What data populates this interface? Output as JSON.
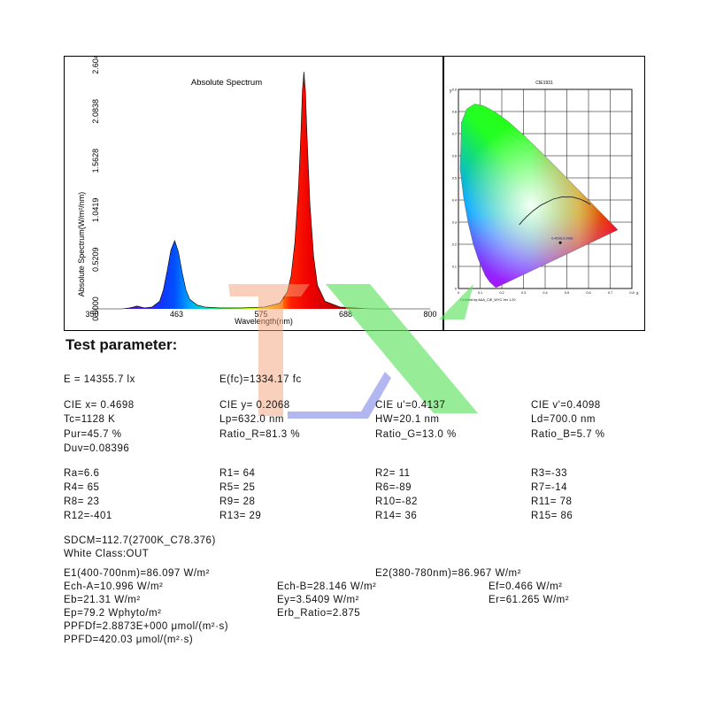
{
  "chart_data": {
    "type": "line",
    "title": "Absolute Spectrum",
    "xlabel": "Wavelength(nm)",
    "ylabel": "Absolute Spectrum(W/m²/nm)",
    "xlim": [
      350,
      800
    ],
    "ylim": [
      0,
      2.6047
    ],
    "x_ticks": [
      "350",
      "463",
      "575",
      "688",
      "800"
    ],
    "y_ticks": [
      "0.0000",
      "0.5209",
      "1.0419",
      "1.5628",
      "2.0838",
      "2.6047"
    ],
    "series": [
      {
        "x": [
          350,
          390,
          400,
          405,
          410,
          415,
          420,
          430,
          440,
          445,
          450,
          455,
          460,
          465,
          470,
          475,
          480,
          490,
          500,
          520,
          550,
          580,
          600,
          610,
          615,
          620,
          625,
          628,
          630,
          632,
          634,
          636,
          640,
          645,
          650,
          660,
          680,
          700,
          720,
          750,
          800
        ],
        "y": [
          0,
          0,
          0.01,
          0.02,
          0.03,
          0.02,
          0.01,
          0.02,
          0.08,
          0.2,
          0.4,
          0.62,
          0.72,
          0.6,
          0.38,
          0.2,
          0.1,
          0.04,
          0.02,
          0.01,
          0.01,
          0.02,
          0.06,
          0.18,
          0.35,
          0.7,
          1.3,
          1.85,
          2.3,
          2.5,
          2.3,
          1.85,
          1.1,
          0.55,
          0.25,
          0.08,
          0.02,
          0.01,
          0,
          0,
          0
        ]
      }
    ],
    "grid": false
  },
  "cie_chart": {
    "title": "CIE1931",
    "footer": "Certified by:AAA_CIE_WYC Ver 1.20",
    "point_label": "0.4698,0.2068",
    "x_ticks": [
      "0",
      "0.1",
      "0.2",
      "0.3",
      "0.4",
      "0.5",
      "0.6",
      "0.7",
      "0.8"
    ],
    "y_ticks": [
      "0",
      "0.1",
      "0.2",
      "0.3",
      "0.4",
      "0.5",
      "0.6",
      "0.7",
      "0.8",
      "0.9"
    ],
    "x_axis_letter": "x",
    "y_axis_letter": "y",
    "point": {
      "x": 0.4698,
      "y": 0.2068
    }
  },
  "params": {
    "heading": "Test parameter:",
    "e_lx": "E =  14355.7 lx",
    "e_fc": "E(fc)=1334.17 fc",
    "cie_x": "CIE x= 0.4698",
    "cie_y": "CIE y= 0.2068",
    "cie_u": "CIE u'=0.4137",
    "cie_v": "CIE v'=0.4098",
    "tc": "Tc=1128 K",
    "lp": "Lp=632.0 nm",
    "hw": "HW=20.1 nm",
    "ld": "Ld=700.0 nm",
    "pur": "Pur=45.7 %",
    "ratio_r": "Ratio_R=81.3 %",
    "ratio_g": "Ratio_G=13.0 %",
    "ratio_b": "Ratio_B=5.7 %",
    "duv": "Duv=0.08396",
    "ra": "Ra=6.6",
    "r1": "R1= 64",
    "r2": "R2= 11",
    "r3": "R3=-33",
    "r4": "R4= 65",
    "r5": "R5= 25",
    "r6": "R6=-89",
    "r7": "R7=-14",
    "r8": "R8= 23",
    "r9": "R9= 28",
    "r10": "R10=-82",
    "r11": "R11= 78",
    "r12": "R12=-401",
    "r13": "R13= 29",
    "r14": "R14= 36",
    "r15": "R15= 86",
    "sdcm": "SDCM=112.7(2700K_C78.376)",
    "white_class": "White Class:OUT",
    "e1": "E1(400-700nm)=86.097 W/m²",
    "e2": "E2(380-780nm)=86.967 W/m²",
    "ech_a": "Ech-A=10.996 W/m²",
    "ech_b": "Ech-B=28.146 W/m²",
    "ef": "Ef=0.466 W/m²",
    "eb": "Eb=21.31 W/m²",
    "ey": "Ey=3.5409 W/m²",
    "er": "Er=61.265 W/m²",
    "ep": "Ep=79.2 Wphyto/m²",
    "erb_ratio": "Erb_Ratio=2.875",
    "ppfdf": "PPFDf=2.8873E+000 μmol/(m²·s)",
    "ppfd": "PPFD=420.03 μmol/(m²·s)"
  }
}
